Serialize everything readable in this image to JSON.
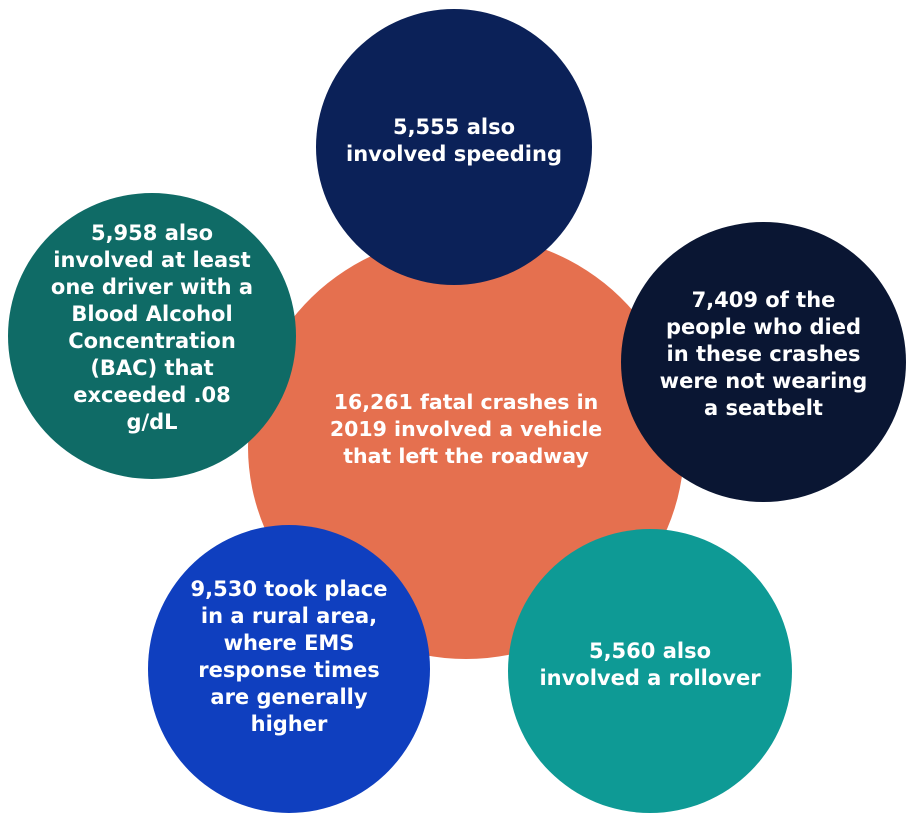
{
  "colors": {
    "center": "#e5704f",
    "speeding": "#0b2158",
    "seatbelt": "#0a1633",
    "bac": "#0f6b66",
    "rural": "#0f3fbf",
    "rollover": "#0e9a95"
  },
  "center": {
    "text": "16,261 fatal crashes in\n2019 involved a vehicle\nthat left the roadway"
  },
  "speeding": {
    "text": "5,555 also\ninvolved speeding"
  },
  "seatbelt": {
    "text": "7,409 of the\npeople who died\nin these crashes\nwere not wearing\na seatbelt"
  },
  "bac": {
    "text": "5,958 also\ninvolved at least\none driver with a\nBlood Alcohol\nConcentration\n(BAC) that\nexceeded .08\ng/dL"
  },
  "rural": {
    "text": "9,530 took place\nin a rural area,\nwhere EMS\nresponse times\nare generally\nhigher"
  },
  "rollover": {
    "text": "5,560 also\ninvolved a rollover"
  }
}
